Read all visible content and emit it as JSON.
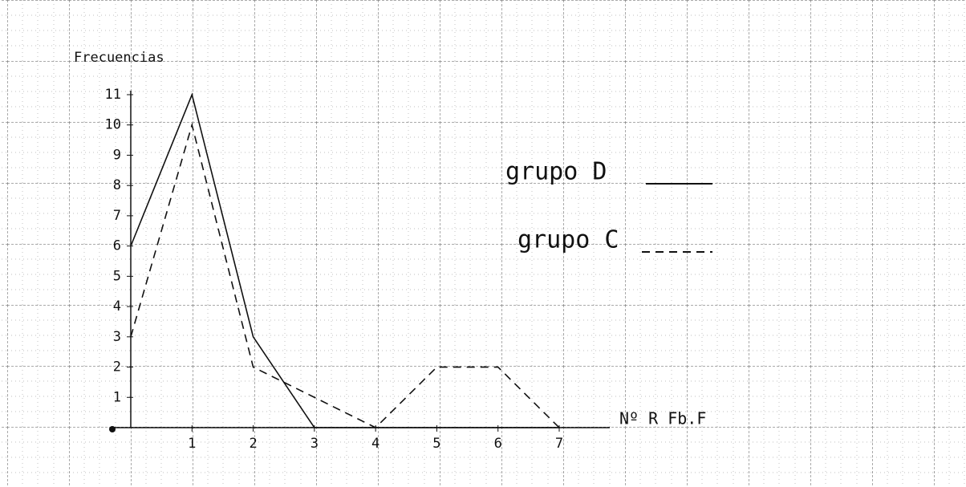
{
  "chart_data": {
    "type": "line",
    "y_label": "Frecuencias",
    "x_label": "Nº R   Fb.F",
    "x": [
      0,
      1,
      2,
      3,
      4,
      5,
      6,
      7
    ],
    "series": [
      {
        "name": "grupo D",
        "color": "#111111",
        "dash": "solid",
        "values": [
          6,
          11,
          3,
          0,
          0,
          0,
          0,
          0
        ]
      },
      {
        "name": "grupo C",
        "color": "#111111",
        "dash": "dashed",
        "values": [
          3,
          10,
          2,
          1,
          0,
          2,
          2,
          0
        ]
      }
    ],
    "xlim": [
      0,
      7
    ],
    "ylim": [
      0,
      11
    ],
    "xticks": [
      1,
      2,
      3,
      4,
      5,
      6,
      7
    ],
    "yticks": [
      1,
      2,
      3,
      4,
      5,
      6,
      7,
      8,
      9,
      10,
      11
    ]
  }
}
